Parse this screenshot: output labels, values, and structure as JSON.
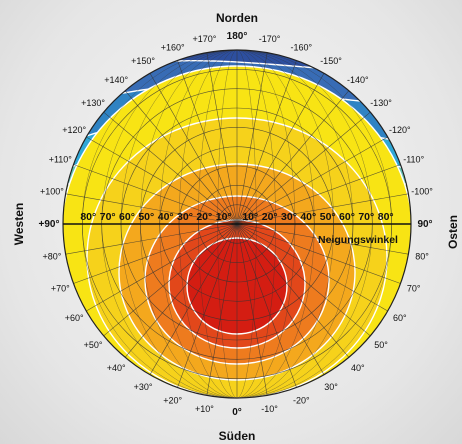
{
  "cardinals": {
    "north": "Norden",
    "south": "Süden",
    "west": "Westen",
    "east": "Osten"
  },
  "azimuth_labels_left": [
    "+10°",
    "+20°",
    "+30°",
    "+40°",
    "+50°",
    "+60°",
    "+70°",
    "+80°",
    "+90°",
    "+100°",
    "+110°",
    "+120°",
    "+130°",
    "+140°",
    "+150°",
    "+160°",
    "+170°"
  ],
  "azimuth_labels_right": [
    "-10°",
    "-20°",
    "30°",
    "40°",
    "50°",
    "60°",
    "70°",
    "80°",
    "90°",
    "-100°",
    "-110°",
    "-120°",
    "-130°",
    "-140°",
    "-150°",
    "-160°",
    "-170°"
  ],
  "azimuth_south": "0°",
  "azimuth_north": "180°",
  "tilt_labels_left": [
    "80°",
    "70°",
    "60°",
    "50°",
    "40°",
    "30°",
    "20°",
    "10°"
  ],
  "tilt_labels_right": [
    "10°",
    "20°",
    "30°",
    "40°",
    "50°",
    "60°",
    "70°",
    "80°"
  ],
  "tilt_axis_name": "Neigungswinkel",
  "colors": {
    "red": "#d41d12",
    "red_orange": "#e2471a",
    "orange": "#ee7b1e",
    "orange_yellow": "#f4a81d",
    "yellow": "#f6d21b",
    "yellow_light": "#f8e414",
    "lime": "#bfcf2c",
    "green": "#82b63c",
    "teal": "#63bfb2",
    "light_blue": "#2fa7d6",
    "blue": "#2f83c3",
    "mid_blue": "#386cb5",
    "dark_blue": "#2d4f9f"
  }
}
